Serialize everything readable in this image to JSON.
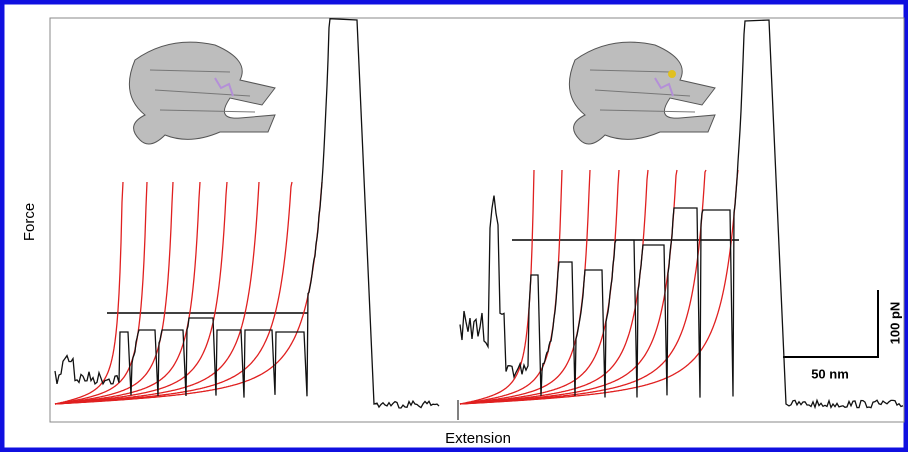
{
  "figure": {
    "y_label": "Force",
    "x_label": "Extension",
    "scale_bar": {
      "x": "50 nm",
      "y": "100 pN"
    }
  }
}
